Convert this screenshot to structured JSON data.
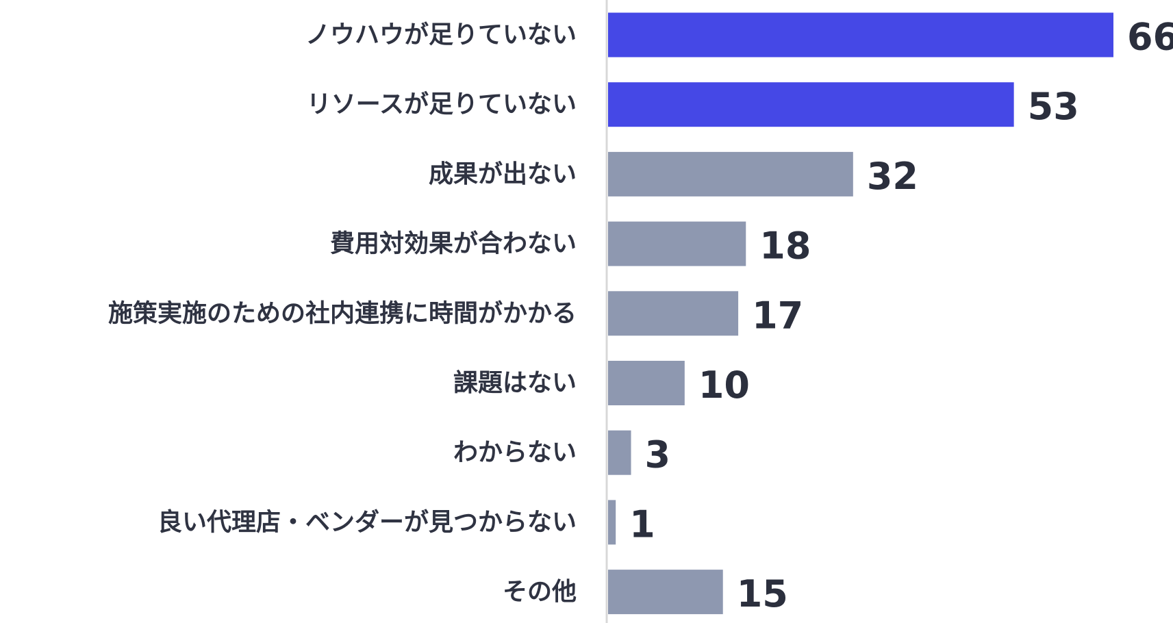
{
  "chart_data": {
    "type": "bar",
    "orientation": "horizontal",
    "categories": [
      "ノウハウが足りていない",
      "リソースが足りていない",
      "成果が出ない",
      "費用対効果が合わない",
      "施策実施のための社内連携に時間がかかる",
      "課題はない",
      "わからない",
      "良い代理店・ベンダーが見つからない",
      "その他"
    ],
    "values": [
      66,
      53,
      32,
      18,
      17,
      10,
      3,
      1,
      15
    ],
    "highlight_count": 2,
    "colors": {
      "highlight": "#4548e6",
      "default": "#8e98b0",
      "axis": "#d8d8d8",
      "label": "#2f3342",
      "value": "#2b2f3d"
    },
    "xlim": [
      0,
      66
    ],
    "grid": false,
    "legend": "none"
  }
}
